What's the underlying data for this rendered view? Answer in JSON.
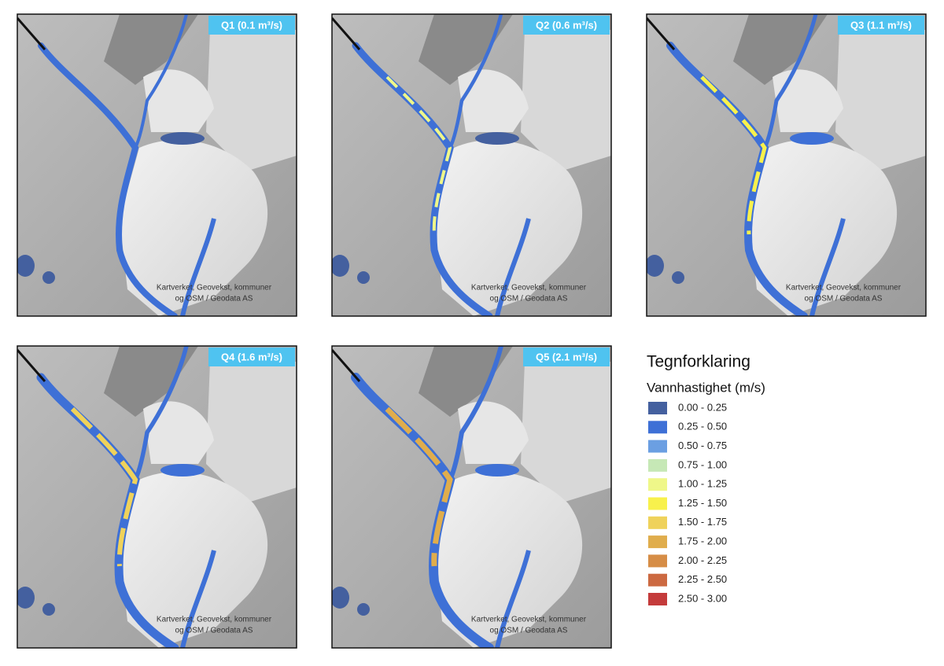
{
  "panels": [
    {
      "label": "Q1 (0.1 m³/s)"
    },
    {
      "label": "Q2 (0.6 m³/s)"
    },
    {
      "label": "Q3 (1.1 m³/s)"
    },
    {
      "label": "Q4 (1.6 m³/s)"
    },
    {
      "label": "Q5 (2.1 m³/s)"
    }
  ],
  "attribution": [
    "Kartverket, Geovekst, kommuner",
    "og OSM / Geodata AS"
  ],
  "legend": {
    "title": "Tegnforklaring",
    "subtitle": "Vannhastighet (m/s)",
    "items": [
      {
        "label": "0.00 - 0.25",
        "color": "#44609f"
      },
      {
        "label": "0.25 - 0.50",
        "color": "#3e70d6"
      },
      {
        "label": "0.50 - 0.75",
        "color": "#6b9fe2"
      },
      {
        "label": "0.75 - 1.00",
        "color": "#c6e8b6"
      },
      {
        "label": "1.00 - 1.25",
        "color": "#eff789"
      },
      {
        "label": "1.25 - 1.50",
        "color": "#f8f14c"
      },
      {
        "label": "1.50 - 1.75",
        "color": "#efd25b"
      },
      {
        "label": "1.75 - 2.00",
        "color": "#e0ad4c"
      },
      {
        "label": "2.00 - 2.25",
        "color": "#d68d46"
      },
      {
        "label": "2.25 - 2.50",
        "color": "#cc6941"
      },
      {
        "label": "2.50 - 3.00",
        "color": "#c43b3b"
      }
    ]
  }
}
